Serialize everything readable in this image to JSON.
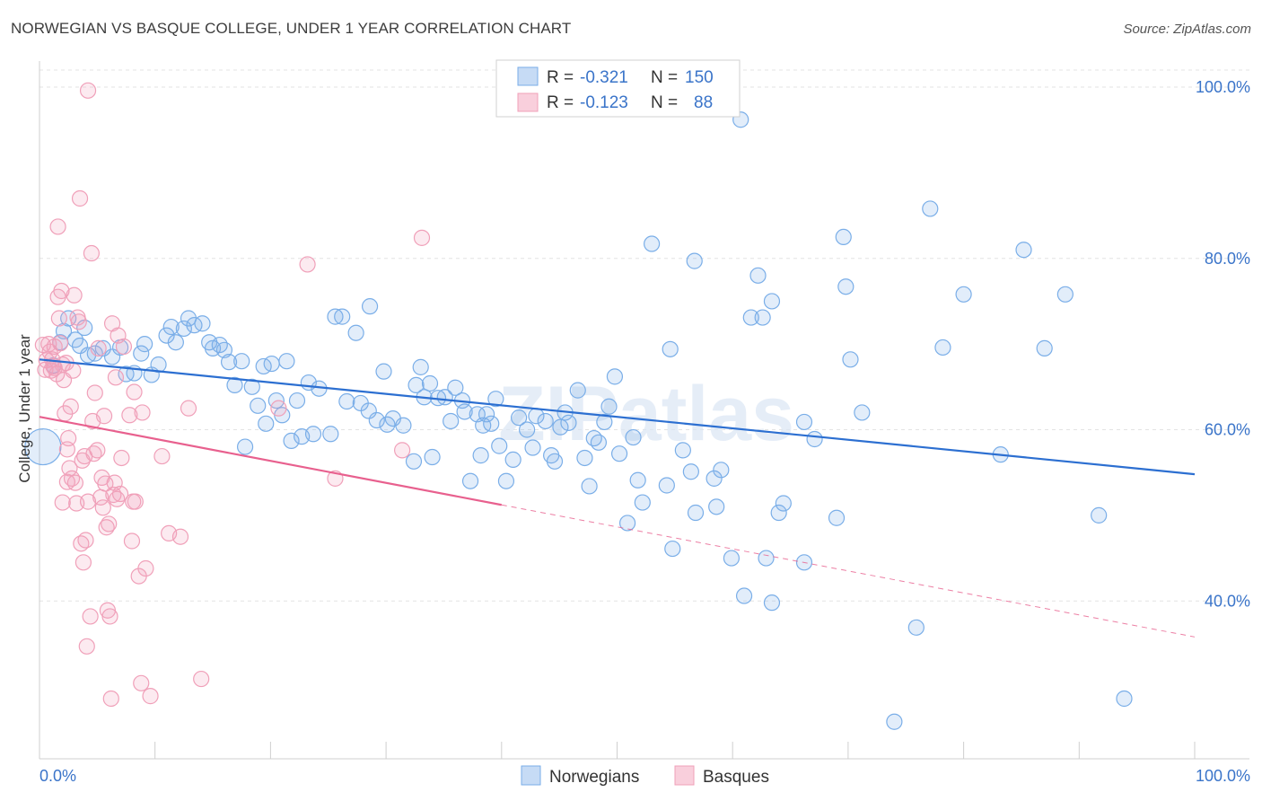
{
  "title": "NORWEGIAN VS BASQUE COLLEGE, UNDER 1 YEAR CORRELATION CHART",
  "source": "Source: ZipAtlas.com",
  "watermark": "ZIPatlas",
  "chart_data": {
    "type": "scatter",
    "xlabel": "",
    "ylabel": "College, Under 1 year",
    "xlim": [
      0,
      100
    ],
    "ylim": [
      20,
      102
    ],
    "x_tick_labels": {
      "left": "0.0%",
      "right": "100.0%"
    },
    "y_ticks": [
      {
        "value": 40,
        "label": "40.0%"
      },
      {
        "value": 60,
        "label": "60.0%"
      },
      {
        "value": 80,
        "label": "80.0%"
      },
      {
        "value": 100,
        "label": "100.0%"
      }
    ],
    "legend": [
      {
        "r_label": "R =",
        "r_value": "-0.321",
        "n_label": "N =",
        "n_value": "150"
      },
      {
        "r_label": "R =",
        "r_value": "-0.123",
        "n_label": "N =",
        "n_value": "88"
      }
    ],
    "series": [
      {
        "name": "Norwegians",
        "color": "#7aaee8",
        "line_color": "#2c6fd1",
        "trend": {
          "x0": 0,
          "y0": 68.2,
          "x1": 100,
          "y1": 54.8,
          "dashed_from": null
        },
        "points": [
          [
            0.3,
            58.0
          ],
          [
            1.2,
            67.5
          ],
          [
            1.8,
            70.2
          ],
          [
            2.1,
            71.5
          ],
          [
            2.5,
            73.0
          ],
          [
            3.1,
            70.5
          ],
          [
            3.5,
            69.8
          ],
          [
            3.9,
            71.9
          ],
          [
            4.2,
            68.7
          ],
          [
            4.8,
            68.9
          ],
          [
            5.5,
            69.5
          ],
          [
            6.3,
            68.5
          ],
          [
            7.0,
            69.6
          ],
          [
            7.5,
            66.5
          ],
          [
            8.2,
            66.6
          ],
          [
            8.8,
            68.9
          ],
          [
            9.1,
            70.0
          ],
          [
            9.7,
            66.4
          ],
          [
            10.3,
            67.6
          ],
          [
            11.0,
            71.0
          ],
          [
            11.4,
            72.0
          ],
          [
            11.8,
            70.2
          ],
          [
            12.5,
            71.8
          ],
          [
            12.9,
            73.0
          ],
          [
            13.4,
            72.2
          ],
          [
            14.1,
            72.4
          ],
          [
            14.7,
            70.2
          ],
          [
            15.0,
            69.5
          ],
          [
            15.6,
            69.9
          ],
          [
            16.0,
            69.3
          ],
          [
            16.4,
            67.9
          ],
          [
            16.9,
            65.2
          ],
          [
            17.5,
            68.0
          ],
          [
            17.8,
            58.0
          ],
          [
            18.4,
            65.0
          ],
          [
            18.9,
            62.8
          ],
          [
            19.4,
            67.4
          ],
          [
            19.6,
            60.7
          ],
          [
            20.1,
            67.7
          ],
          [
            20.5,
            63.4
          ],
          [
            21.0,
            61.7
          ],
          [
            21.4,
            68.0
          ],
          [
            21.8,
            58.7
          ],
          [
            22.3,
            63.4
          ],
          [
            22.7,
            59.2
          ],
          [
            23.3,
            65.5
          ],
          [
            23.7,
            59.5
          ],
          [
            24.2,
            64.8
          ],
          [
            25.2,
            59.5
          ],
          [
            25.6,
            73.2
          ],
          [
            26.2,
            73.2
          ],
          [
            26.6,
            63.3
          ],
          [
            27.4,
            71.3
          ],
          [
            27.8,
            63.1
          ],
          [
            28.5,
            62.2
          ],
          [
            28.6,
            74.4
          ],
          [
            29.2,
            61.1
          ],
          [
            29.8,
            66.8
          ],
          [
            30.1,
            60.6
          ],
          [
            30.6,
            61.3
          ],
          [
            31.5,
            60.5
          ],
          [
            32.4,
            56.3
          ],
          [
            32.6,
            65.2
          ],
          [
            33.0,
            67.3
          ],
          [
            33.3,
            63.8
          ],
          [
            33.8,
            65.4
          ],
          [
            34.0,
            56.8
          ],
          [
            34.5,
            63.7
          ],
          [
            35.1,
            63.8
          ],
          [
            35.6,
            61.0
          ],
          [
            36.0,
            64.9
          ],
          [
            36.6,
            63.4
          ],
          [
            36.8,
            62.1
          ],
          [
            37.3,
            54.0
          ],
          [
            37.9,
            61.8
          ],
          [
            38.2,
            57.0
          ],
          [
            38.4,
            60.5
          ],
          [
            38.7,
            61.8
          ],
          [
            39.1,
            60.7
          ],
          [
            39.5,
            63.6
          ],
          [
            39.8,
            58.1
          ],
          [
            40.4,
            54.0
          ],
          [
            41.0,
            56.5
          ],
          [
            41.5,
            61.4
          ],
          [
            42.2,
            60.0
          ],
          [
            42.7,
            57.9
          ],
          [
            43.0,
            61.6
          ],
          [
            43.8,
            61.0
          ],
          [
            44.3,
            57.0
          ],
          [
            44.6,
            56.3
          ],
          [
            45.1,
            60.3
          ],
          [
            45.5,
            62.0
          ],
          [
            45.8,
            60.8
          ],
          [
            46.6,
            64.6
          ],
          [
            47.2,
            56.7
          ],
          [
            47.6,
            53.4
          ],
          [
            48.0,
            59.0
          ],
          [
            48.4,
            58.5
          ],
          [
            48.9,
            60.9
          ],
          [
            49.3,
            62.7
          ],
          [
            49.8,
            66.2
          ],
          [
            50.2,
            57.2
          ],
          [
            50.9,
            49.1
          ],
          [
            51.4,
            59.1
          ],
          [
            51.8,
            54.1
          ],
          [
            52.2,
            51.5
          ],
          [
            53.0,
            81.7
          ],
          [
            54.3,
            53.5
          ],
          [
            54.6,
            69.4
          ],
          [
            54.8,
            46.1
          ],
          [
            55.7,
            57.6
          ],
          [
            56.4,
            55.1
          ],
          [
            56.7,
            79.7
          ],
          [
            56.8,
            50.3
          ],
          [
            58.4,
            54.3
          ],
          [
            58.6,
            51.0
          ],
          [
            59.0,
            55.3
          ],
          [
            59.9,
            45.0
          ],
          [
            60.7,
            96.2
          ],
          [
            61.0,
            40.6
          ],
          [
            61.6,
            73.1
          ],
          [
            62.2,
            78.0
          ],
          [
            62.6,
            73.1
          ],
          [
            62.9,
            45.0
          ],
          [
            63.4,
            39.8
          ],
          [
            63.4,
            75.0
          ],
          [
            64.0,
            50.3
          ],
          [
            64.4,
            51.4
          ],
          [
            66.2,
            44.5
          ],
          [
            66.2,
            60.9
          ],
          [
            67.1,
            58.9
          ],
          [
            69.0,
            49.7
          ],
          [
            69.6,
            82.5
          ],
          [
            69.8,
            76.7
          ],
          [
            70.2,
            68.2
          ],
          [
            71.2,
            62.0
          ],
          [
            75.9,
            36.9
          ],
          [
            77.1,
            85.8
          ],
          [
            78.2,
            69.6
          ],
          [
            80.0,
            75.8
          ],
          [
            83.2,
            57.1
          ],
          [
            85.2,
            81.0
          ],
          [
            87.0,
            69.5
          ],
          [
            88.8,
            75.8
          ],
          [
            91.7,
            50.0
          ],
          [
            93.9,
            28.6
          ],
          [
            74.0,
            25.9
          ]
        ]
      },
      {
        "name": "Basques",
        "color": "#f0a0b9",
        "line_color": "#e8608e",
        "trend": {
          "x0": 0,
          "y0": 61.5,
          "x1": 100,
          "y1": 35.8,
          "dashed_from": 40
        },
        "points": [
          [
            0.3,
            69.9
          ],
          [
            0.5,
            67.0
          ],
          [
            0.6,
            68.1
          ],
          [
            0.8,
            70.0
          ],
          [
            1.0,
            66.9
          ],
          [
            1.1,
            68.2
          ],
          [
            1.2,
            67.4
          ],
          [
            1.3,
            69.7
          ],
          [
            1.5,
            66.5
          ],
          [
            1.6,
            75.5
          ],
          [
            1.7,
            73.0
          ],
          [
            1.8,
            70.1
          ],
          [
            1.9,
            76.2
          ],
          [
            2.0,
            67.6
          ],
          [
            2.1,
            65.8
          ],
          [
            2.2,
            61.9
          ],
          [
            2.3,
            67.8
          ],
          [
            2.4,
            57.7
          ],
          [
            2.5,
            59.0
          ],
          [
            2.6,
            55.5
          ],
          [
            2.7,
            62.7
          ],
          [
            2.8,
            54.3
          ],
          [
            2.9,
            66.9
          ],
          [
            3.0,
            75.7
          ],
          [
            3.1,
            53.8
          ],
          [
            3.2,
            51.4
          ],
          [
            3.3,
            73.1
          ],
          [
            3.4,
            72.6
          ],
          [
            3.6,
            46.7
          ],
          [
            3.7,
            56.4
          ],
          [
            3.8,
            44.5
          ],
          [
            3.9,
            56.9
          ],
          [
            4.0,
            47.1
          ],
          [
            4.1,
            34.7
          ],
          [
            4.2,
            51.6
          ],
          [
            4.4,
            38.2
          ],
          [
            4.5,
            80.6
          ],
          [
            4.6,
            61.0
          ],
          [
            4.7,
            57.2
          ],
          [
            4.8,
            64.3
          ],
          [
            5.0,
            57.6
          ],
          [
            5.1,
            69.5
          ],
          [
            5.3,
            52.1
          ],
          [
            5.4,
            54.4
          ],
          [
            5.5,
            50.9
          ],
          [
            5.6,
            61.6
          ],
          [
            5.7,
            53.7
          ],
          [
            5.8,
            48.6
          ],
          [
            5.9,
            38.9
          ],
          [
            6.0,
            49.0
          ],
          [
            6.1,
            38.2
          ],
          [
            6.2,
            28.6
          ],
          [
            6.3,
            72.4
          ],
          [
            6.4,
            52.4
          ],
          [
            6.5,
            53.8
          ],
          [
            6.6,
            66.1
          ],
          [
            6.7,
            51.9
          ],
          [
            6.8,
            71.0
          ],
          [
            7.0,
            52.5
          ],
          [
            7.1,
            56.7
          ],
          [
            7.3,
            69.7
          ],
          [
            7.8,
            61.7
          ],
          [
            8.0,
            47.0
          ],
          [
            8.1,
            51.6
          ],
          [
            8.2,
            64.4
          ],
          [
            8.3,
            51.6
          ],
          [
            8.6,
            42.9
          ],
          [
            8.8,
            30.4
          ],
          [
            8.9,
            62.0
          ],
          [
            9.2,
            43.8
          ],
          [
            9.6,
            28.9
          ],
          [
            10.6,
            56.9
          ],
          [
            11.2,
            47.9
          ],
          [
            12.2,
            47.5
          ],
          [
            12.9,
            62.5
          ],
          [
            14.0,
            30.9
          ],
          [
            20.7,
            62.5
          ],
          [
            23.2,
            79.3
          ],
          [
            25.6,
            54.3
          ],
          [
            31.4,
            57.6
          ],
          [
            33.1,
            82.4
          ],
          [
            3.5,
            87.0
          ],
          [
            1.6,
            83.7
          ],
          [
            4.2,
            99.6
          ],
          [
            2.4,
            53.9
          ],
          [
            1.3,
            67.2
          ],
          [
            0.9,
            69.1
          ],
          [
            2.0,
            51.5
          ]
        ]
      }
    ]
  }
}
